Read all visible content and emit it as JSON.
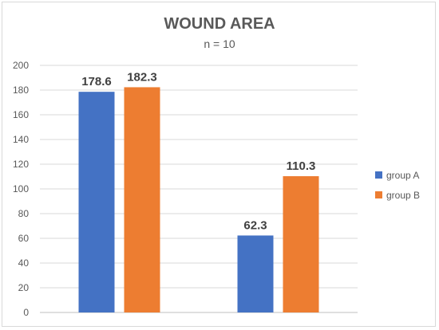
{
  "chart_data": {
    "type": "bar",
    "title": "WOUND AREA",
    "subtitle": "n = 10",
    "categories": [
      "",
      ""
    ],
    "series": [
      {
        "name": "group A",
        "values": [
          178.6,
          62.3
        ],
        "color": "#4472C4"
      },
      {
        "name": "group B",
        "values": [
          182.3,
          110.3
        ],
        "color": "#ED7D31"
      }
    ],
    "data_labels": [
      [
        "178.6",
        "62.3"
      ],
      [
        "182.3",
        "110.3"
      ]
    ],
    "ylim": [
      0,
      200
    ],
    "yticks": [
      "0",
      "20",
      "40",
      "60",
      "80",
      "100",
      "120",
      "140",
      "160",
      "180",
      "200"
    ],
    "grid": true,
    "legend_position": "right"
  }
}
